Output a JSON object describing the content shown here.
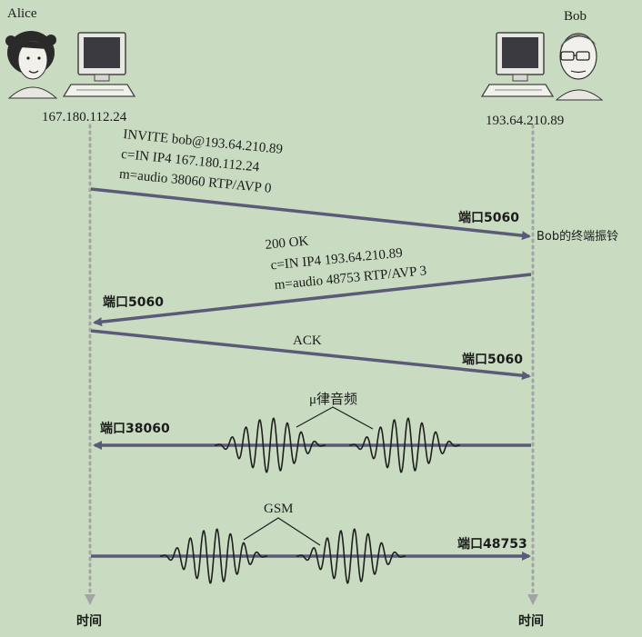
{
  "alice": {
    "name": "Alice",
    "ip": "167.180.112.24",
    "time_label": "时间"
  },
  "bob": {
    "name": "Bob",
    "ip": "193.64.210.89",
    "time_label": "时间"
  },
  "messages": {
    "invite": {
      "line1": "INVITE bob@193.64.210.89",
      "line2": "c=IN IP4 167.180.112.24",
      "line3": "m=audio 38060 RTP/AVP 0",
      "port": "端口5060"
    },
    "bob_ringing": "Bob的终端振铃",
    "ok": {
      "line1": "200 OK",
      "line2": "c=IN IP4 193.64.210.89",
      "line3": "m=audio 48753 RTP/AVP 3",
      "port": "端口5060"
    },
    "ack": {
      "label": "ACK",
      "port": "端口5060"
    },
    "audio_to_alice": {
      "codec": "μ律音频",
      "port": "端口38060"
    },
    "audio_to_bob": {
      "codec": "GSM",
      "port": "端口48753"
    }
  },
  "colors": {
    "background": "#c9dcc1",
    "arrow": "#5b5a78",
    "timeline": "#a4a4a4",
    "wave": "#1f1f1f"
  },
  "icons": [
    "woman-avatar-icon",
    "computer-icon",
    "man-avatar-icon"
  ]
}
